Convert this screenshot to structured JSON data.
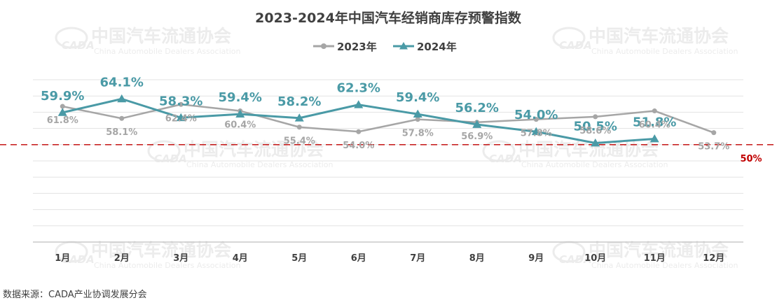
{
  "chart_data": {
    "type": "line",
    "title": "2023-2024年中国汽车经销商库存预警指数",
    "categories": [
      "1月",
      "2月",
      "3月",
      "4月",
      "5月",
      "6月",
      "7月",
      "8月",
      "9月",
      "10月",
      "11月",
      "12月"
    ],
    "series": [
      {
        "name": "2023年",
        "color": "#a6a6a6",
        "marker": "circle",
        "values": [
          61.8,
          58.1,
          62.4,
          60.4,
          55.4,
          54.0,
          57.8,
          56.9,
          57.8,
          58.6,
          60.4,
          53.7
        ]
      },
      {
        "name": "2024年",
        "color": "#4a9aa6",
        "marker": "triangle",
        "values": [
          59.9,
          64.1,
          58.3,
          59.4,
          58.2,
          62.3,
          59.4,
          56.2,
          54.0,
          50.5,
          51.8,
          null
        ]
      }
    ],
    "value_labels_2024": [
      "59.9%",
      "64.1%",
      "58.3%",
      "59.4%",
      "58.2%",
      "62.3%",
      "59.4%",
      "56.2%",
      "54.0%",
      "50.5%",
      "51.8%",
      ""
    ],
    "value_labels_2023": [
      "61.8%",
      "58.1%",
      "62.4%",
      "60.4%",
      "55.4%",
      "54.0%",
      "57.8%",
      "56.9%",
      "57.8%",
      "58.6%",
      "60.4%",
      "53.7%"
    ],
    "reference_line": {
      "value": 50,
      "label": "50%",
      "color": "#c00000",
      "style": "dashed"
    },
    "ylim": [
      20,
      70
    ],
    "grid": true,
    "legend_position": "top-center",
    "xlabel": "",
    "ylabel": ""
  },
  "source_text": "数据来源：CADA产业协调发展分会",
  "watermark": {
    "cn": "中国汽车流通协会",
    "en": "China Automobile Dealers Association",
    "logo": "CADA"
  }
}
